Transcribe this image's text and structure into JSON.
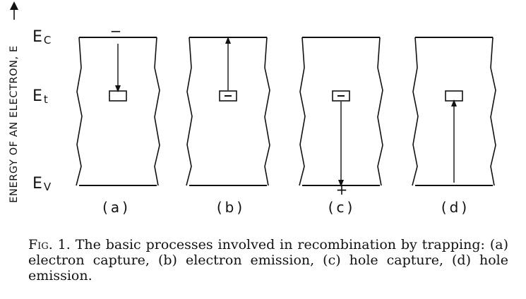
{
  "y_axis_label": "ENERGY OF AN ELECTRON, E",
  "levels": {
    "conduction": {
      "symbol": "E",
      "sub": "C"
    },
    "trap": {
      "symbol": "E",
      "sub": "t"
    },
    "valence": {
      "symbol": "E",
      "sub": "V"
    }
  },
  "panels": [
    {
      "label": "(a)",
      "process": "electron capture",
      "trap_occupied": false,
      "arrow": "down-to-trap",
      "sign": "−"
    },
    {
      "label": "(b)",
      "process": "electron emission",
      "trap_occupied": true,
      "arrow": "up-to-conduction",
      "sign": ""
    },
    {
      "label": "(c)",
      "process": "hole capture",
      "trap_occupied": true,
      "arrow": "down-to-valence",
      "sign": "+"
    },
    {
      "label": "(d)",
      "process": "hole emission",
      "trap_occupied": false,
      "arrow": "up-to-trap",
      "sign": ""
    }
  ],
  "caption": {
    "figure_number": "Fig. 1.",
    "text": "The basic processes involved in recombination by trapping: (a) electron capture, (b) electron emission, (c) hole capture, (d) hole emission."
  }
}
